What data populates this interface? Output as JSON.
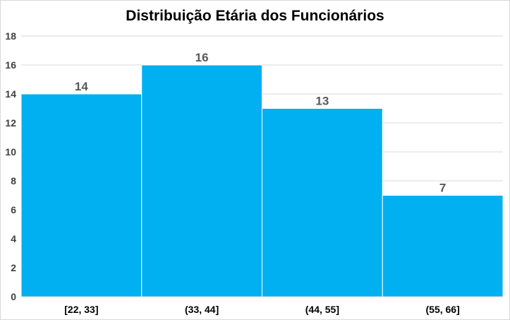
{
  "chart_data": {
    "type": "bar",
    "title": "Distribuição Etária dos Funcionários",
    "xlabel": "",
    "ylabel": "",
    "categories": [
      "[22, 33]",
      "(33, 44]",
      "(44, 55]",
      "(55, 66]"
    ],
    "values": [
      14,
      16,
      13,
      7
    ],
    "ylim": [
      0,
      18
    ],
    "yticks": [
      0,
      2,
      4,
      6,
      8,
      10,
      12,
      14,
      16,
      18
    ],
    "grid": true,
    "bar_color": "#00B0F0",
    "data_labels": true,
    "legend": "none"
  }
}
